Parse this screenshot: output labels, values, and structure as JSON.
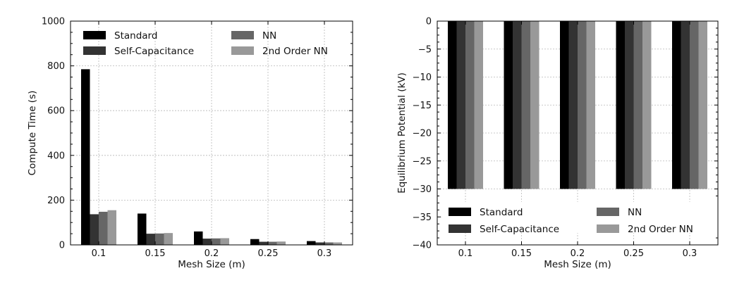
{
  "chart_data": [
    {
      "type": "bar",
      "title": "",
      "xlabel": "Mesh Size (m)",
      "ylabel": "Compute Time (s)",
      "categories": [
        "0.1",
        "0.15",
        "0.2",
        "0.25",
        "0.3"
      ],
      "ylim": [
        0,
        1000
      ],
      "yticks": [
        0,
        200,
        400,
        600,
        800,
        1000
      ],
      "grid": true,
      "legend_position": "top",
      "series": [
        {
          "name": "Standard",
          "color": "#000000",
          "values": [
            785,
            140,
            60,
            26,
            17
          ]
        },
        {
          "name": "Self-Capacitance",
          "color": "#333333",
          "values": [
            137,
            50,
            28,
            14,
            11
          ]
        },
        {
          "name": "NN",
          "color": "#666666",
          "values": [
            148,
            51,
            29,
            14,
            11
          ]
        },
        {
          "name": "2nd Order NN",
          "color": "#999999",
          "values": [
            155,
            53,
            30,
            15,
            11
          ]
        }
      ]
    },
    {
      "type": "bar",
      "title": "",
      "xlabel": "Mesh Size (m)",
      "ylabel": "Equilibrium Potential (kV)",
      "categories": [
        "0.1",
        "0.15",
        "0.2",
        "0.25",
        "0.3"
      ],
      "ylim": [
        -40,
        0
      ],
      "yticks": [
        0,
        -5,
        -10,
        -15,
        -20,
        -25,
        -30,
        -35,
        -40
      ],
      "grid": true,
      "legend_position": "bottom",
      "series": [
        {
          "name": "Standard",
          "color": "#000000",
          "values": [
            -30,
            -30,
            -30,
            -30,
            -30
          ]
        },
        {
          "name": "Self-Capacitance",
          "color": "#333333",
          "values": [
            -30,
            -30,
            -30,
            -30,
            -30
          ]
        },
        {
          "name": "NN",
          "color": "#666666",
          "values": [
            -30,
            -30,
            -30,
            -30,
            -30
          ]
        },
        {
          "name": "2nd Order NN",
          "color": "#999999",
          "values": [
            -30,
            -30,
            -30,
            -30,
            -30
          ]
        }
      ]
    }
  ]
}
